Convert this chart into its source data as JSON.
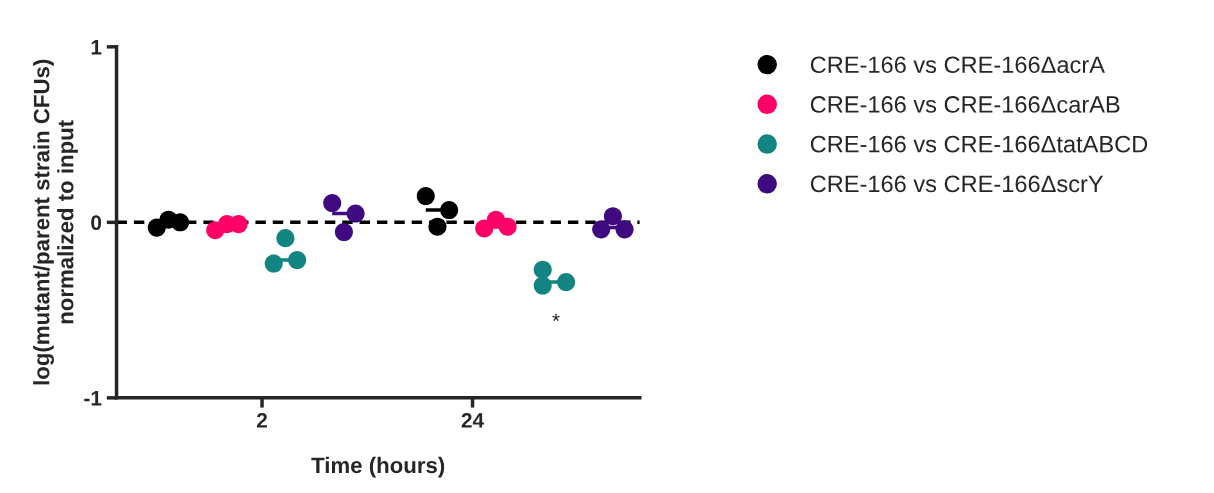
{
  "chart_data": {
    "type": "scatter",
    "xlabel": "Time (hours)",
    "ylabel": "log(mutant/parent strain CFUs)\nnormalized to input",
    "categories": [
      null,
      null,
      null,
      null,
      null,
      null,
      null,
      null,
      null,
      "2",
      null,
      null,
      null,
      null,
      null,
      null,
      null,
      null,
      null,
      null,
      null,
      null,
      null,
      null,
      null,
      null,
      null,
      "24",
      null,
      null,
      null,
      null,
      null,
      null,
      null,
      null,
      null,
      null,
      null,
      null,
      null
    ],
    "ylim": [
      -1,
      1
    ],
    "yticks": [
      {
        "value": -1,
        "label": "-1"
      },
      0,
      1
    ],
    "legend": "right",
    "marker": "circle",
    "series": [
      {
        "name": "CRE-166 vs CRE-166ΔacrA",
        "color": "#000000",
        "values": [
          -0.03,
          0.015,
          0.0,
          null,
          null,
          null,
          null,
          null,
          null,
          null,
          null,
          null,
          null,
          null,
          null,
          null,
          null,
          null,
          null,
          null,
          null,
          null,
          null,
          0.15,
          -0.025,
          0.07,
          null,
          null,
          null,
          null,
          null,
          null,
          null,
          null,
          null,
          null,
          null,
          null,
          null,
          null,
          null
        ]
      },
      {
        "name": "CRE-166 vs CRE-166ΔcarAB",
        "color": "#ff0066",
        "values": [
          null,
          null,
          null,
          null,
          null,
          -0.045,
          -0.01,
          -0.01,
          null,
          null,
          null,
          null,
          null,
          null,
          null,
          null,
          null,
          null,
          null,
          null,
          null,
          null,
          null,
          null,
          null,
          null,
          null,
          null,
          -0.035,
          0.015,
          -0.025,
          null,
          null,
          null,
          null,
          null,
          null,
          null,
          null,
          null,
          null
        ]
      },
      {
        "name": "CRE-166 vs CRE-166ΔtatABCD",
        "color": "#128481",
        "values": [
          null,
          null,
          null,
          null,
          null,
          null,
          null,
          null,
          null,
          null,
          -0.235,
          -0.09,
          -0.215,
          null,
          null,
          null,
          null,
          null,
          null,
          null,
          null,
          null,
          null,
          null,
          null,
          null,
          null,
          null,
          null,
          null,
          null,
          null,
          null,
          -0.27,
          null,
          -0.34,
          null,
          null,
          null,
          null,
          null
        ]
      },
      {
        "name": "CRE-166 vs CRE-166ΔscrY",
        "color": "#3f0a80",
        "values": [
          null,
          null,
          null,
          null,
          null,
          null,
          null,
          null,
          null,
          null,
          null,
          null,
          null,
          null,
          null,
          0.11,
          -0.055,
          0.05,
          null,
          null,
          null,
          null,
          null,
          null,
          null,
          null,
          null,
          null,
          null,
          null,
          null,
          null,
          null,
          null,
          null,
          null,
          null,
          null,
          -0.04,
          0.035,
          -0.04
        ]
      },
      {
        "color": "#128481",
        "values": [
          null,
          null,
          null,
          null,
          null,
          null,
          null,
          null,
          null,
          null,
          null,
          null,
          null,
          null,
          null,
          null,
          null,
          null,
          null,
          null,
          null,
          null,
          null,
          null,
          null,
          null,
          null,
          null,
          null,
          null,
          null,
          null,
          null,
          -0.36,
          null,
          null,
          null,
          null,
          null,
          null,
          null
        ]
      },
      {
        "type": "line",
        "marker": "none",
        "color": "#000000",
        "values": [
          0.0,
          0.0,
          0.0,
          null,
          null,
          null,
          null,
          null,
          null,
          null,
          null,
          null,
          null,
          null,
          null,
          null,
          null,
          null,
          null,
          null,
          null,
          null,
          null,
          0.07,
          0.07,
          0.07,
          null,
          null,
          null,
          null,
          null,
          null,
          null,
          null,
          null,
          null,
          null,
          null,
          null,
          null,
          null
        ]
      },
      {
        "type": "line",
        "marker": "none",
        "color": "#ff0066",
        "values": [
          null,
          null,
          null,
          null,
          null,
          -0.01,
          -0.01,
          -0.01,
          null,
          null,
          null,
          null,
          null,
          null,
          null,
          null,
          null,
          null,
          null,
          null,
          null,
          null,
          null,
          null,
          null,
          null,
          null,
          null,
          -0.025,
          -0.025,
          -0.025,
          null,
          null,
          null,
          null,
          null,
          null,
          null,
          null,
          null,
          null
        ]
      },
      {
        "type": "line",
        "marker": "none",
        "color": "#128481",
        "values": [
          null,
          null,
          null,
          null,
          null,
          null,
          null,
          null,
          null,
          null,
          -0.215,
          -0.215,
          -0.215,
          null,
          null,
          null,
          null,
          null,
          null,
          null,
          null,
          null,
          null,
          null,
          null,
          null,
          null,
          null,
          null,
          null,
          null,
          null,
          null,
          -0.34,
          -0.34,
          -0.34,
          null,
          null,
          null,
          null,
          null
        ]
      },
      {
        "type": "line",
        "marker": "none",
        "color": "#3f0a80",
        "values": [
          null,
          null,
          null,
          null,
          null,
          null,
          null,
          null,
          null,
          null,
          null,
          null,
          null,
          null,
          null,
          0.05,
          0.05,
          0.05,
          null,
          null,
          null,
          null,
          null,
          null,
          null,
          null,
          null,
          null,
          null,
          null,
          null,
          null,
          null,
          null,
          null,
          null,
          null,
          null,
          -0.03,
          -0.03,
          -0.03
        ]
      }
    ],
    "ref_lines": [
      {
        "axis": "y",
        "value": 0,
        "color": "#000000",
        "line_style": "dashed"
      }
    ],
    "annotations": [
      "*"
    ]
  }
}
